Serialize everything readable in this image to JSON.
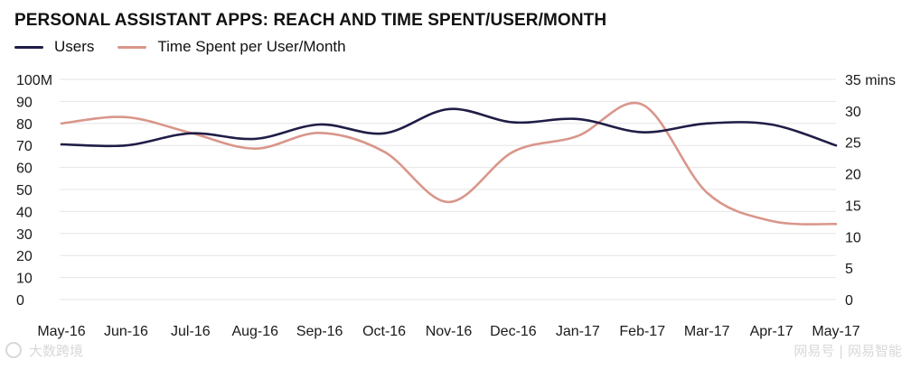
{
  "chart_data": {
    "type": "line",
    "title": "PERSONAL ASSISTANT APPS: REACH AND TIME SPENT/USER/MONTH",
    "categories": [
      "May-16",
      "Jun-16",
      "Jul-16",
      "Aug-16",
      "Sep-16",
      "Oct-16",
      "Nov-16",
      "Dec-16",
      "Jan-17",
      "Feb-17",
      "Mar-17",
      "Apr-17",
      "May-17"
    ],
    "y_left": {
      "ticks": [
        "0",
        "10",
        "20",
        "30",
        "40",
        "50",
        "60",
        "70",
        "80",
        "90",
        "100M"
      ],
      "ylim": [
        0,
        100
      ]
    },
    "y_right": {
      "ticks": [
        "0",
        "5",
        "10",
        "15",
        "20",
        "25",
        "30",
        "35 mins"
      ],
      "ylim": [
        0,
        35
      ]
    },
    "grid": true,
    "legend_position": "top-left",
    "series": [
      {
        "name": "Users",
        "axis": "left",
        "color": "#1f1d46",
        "values": [
          70.5,
          70,
          75.5,
          73,
          79.5,
          75.5,
          86.5,
          80.5,
          82,
          76,
          80,
          79.5,
          70
        ]
      },
      {
        "name": "Time Spent per User/Month",
        "axis": "right",
        "color": "#d9968a",
        "values": [
          28,
          29,
          26.5,
          24,
          26.5,
          23.5,
          15.5,
          23.5,
          26,
          31,
          17,
          12.5,
          12
        ]
      }
    ]
  },
  "watermark": {
    "left_text": "大数跨境",
    "right_text": "网易号 | 网易智能"
  }
}
